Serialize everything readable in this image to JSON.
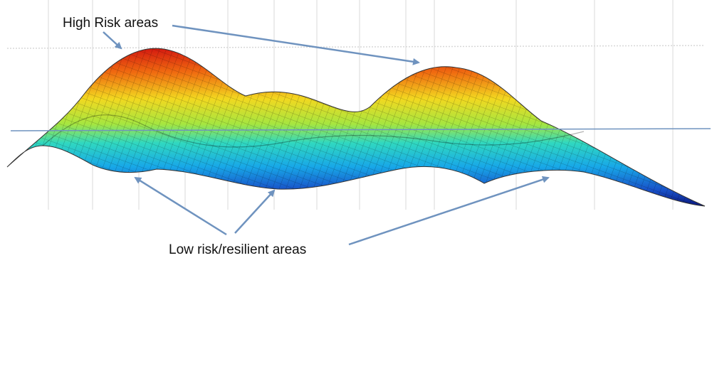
{
  "labels": {
    "high_risk": "High Risk areas",
    "low_risk": "Low risk/resilient areas"
  }
}
